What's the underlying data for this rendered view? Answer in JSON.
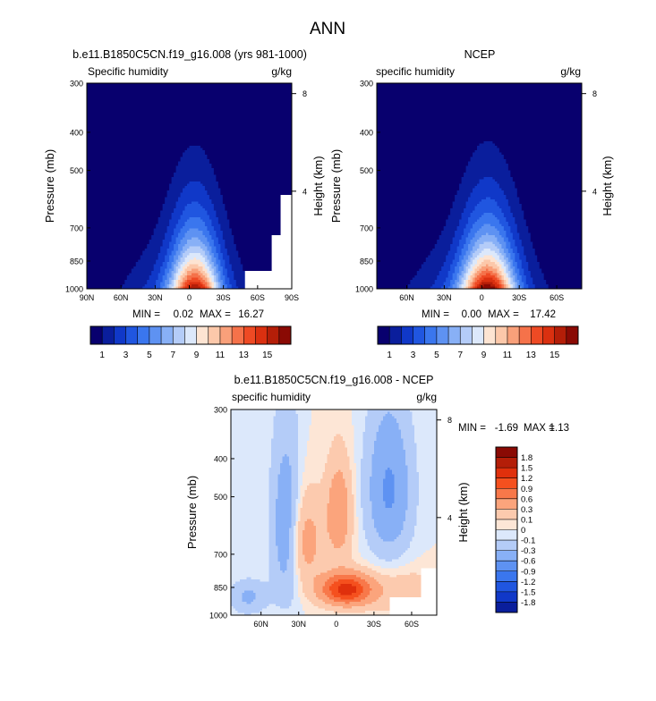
{
  "figure": {
    "title": "ANN"
  },
  "chart_data": [
    {
      "type": "heatmap",
      "title": "b.e11.B1850C5CN.f19_g16.008 (yrs 981-1000)",
      "left_label": "Specific humidity",
      "right_label": "g/kg",
      "ylabel": "Pressure (mb)",
      "y2label": "Height (km)",
      "xticks": [
        "90N",
        "60N",
        "30N",
        "0",
        "30S",
        "60S",
        "90S"
      ],
      "yticks": [
        "300",
        "400",
        "500",
        "700",
        "850",
        "1000"
      ],
      "y2ticks": [
        "8",
        "4"
      ],
      "min_label": "MIN =",
      "min_value": "0.02",
      "max_label": "MAX =",
      "max_value": "16.27",
      "field": {
        "peak_lat": -5,
        "peak_value": 16.27,
        "missing_south_of": 60
      }
    },
    {
      "type": "heatmap",
      "title": "NCEP",
      "left_label": "specific humidity",
      "right_label": "g/kg",
      "ylabel": "Pressure (mb)",
      "y2label": "Height (km)",
      "xticks": [
        "60N",
        "30N",
        "0",
        "30S",
        "60S"
      ],
      "yticks": [
        "300",
        "400",
        "500",
        "700",
        "850",
        "1000"
      ],
      "y2ticks": [
        "8",
        "4"
      ],
      "min_label": "MIN =",
      "min_value": "0.00",
      "max_label": "MAX =",
      "max_value": "17.42",
      "field": {
        "peak_lat": -5,
        "peak_value": 17.42
      }
    },
    {
      "type": "heatmap",
      "title": "b.e11.B1850C5CN.f19_g16.008 - NCEP",
      "left_label": "specific humidity",
      "right_label": "g/kg",
      "ylabel": "Pressure (mb)",
      "y2label": "Height (km)",
      "xticks": [
        "60N",
        "30N",
        "0",
        "30S",
        "60S"
      ],
      "yticks": [
        "300",
        "400",
        "500",
        "700",
        "850",
        "1000"
      ],
      "y2ticks": [
        "8",
        "4"
      ],
      "min_label": "MIN =",
      "min_value": "-1.69",
      "max_label": "MAX =",
      "max_value": "1.13"
    }
  ],
  "colorbar_main": {
    "labels": [
      "1",
      "3",
      "5",
      "7",
      "9",
      "11",
      "13",
      "15"
    ],
    "colors": [
      "#08006e",
      "#0a1e9c",
      "#1038c8",
      "#2056e0",
      "#3a76ee",
      "#5e92f2",
      "#88b0f6",
      "#b4ccf8",
      "#dce8fb",
      "#fde4d2",
      "#fcc8aa",
      "#f9a07a",
      "#f5724a",
      "#ee4a24",
      "#da3010",
      "#b41e08",
      "#8a0a04"
    ]
  },
  "colorbar_diff": {
    "labels": [
      "1.8",
      "1.5",
      "1.2",
      "0.9",
      "0.6",
      "0.3",
      "0.1",
      "0",
      "-0.1",
      "-0.3",
      "-0.6",
      "-0.9",
      "-1.2",
      "-1.5",
      "-1.8"
    ],
    "colors": [
      "#8a0a04",
      "#b41e08",
      "#e0300c",
      "#f5501e",
      "#f8784a",
      "#fba47c",
      "#fccaae",
      "#fde6d6",
      "#dce8fb",
      "#b4ccf8",
      "#88b0f6",
      "#5e92f2",
      "#3a76ee",
      "#2056e0",
      "#1038c8",
      "#0a1e9c"
    ]
  }
}
